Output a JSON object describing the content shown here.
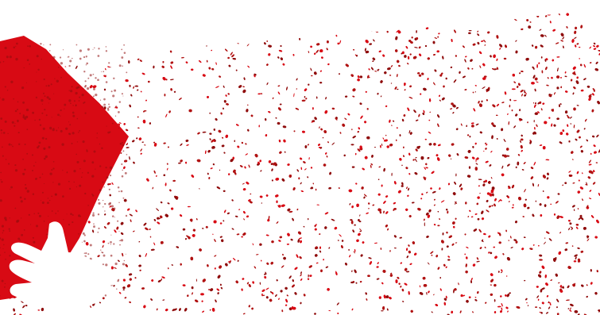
{
  "image": {
    "kind": "abstract graphic",
    "palette": {
      "background": "#ffffff",
      "primary_red": "#d80a14",
      "speckle_red": "#b01212",
      "speckle_dark_red": "#8f0c0c"
    },
    "shapes": [
      "red-polygon",
      "hand-silhouette",
      "speckled-spray-band"
    ]
  }
}
